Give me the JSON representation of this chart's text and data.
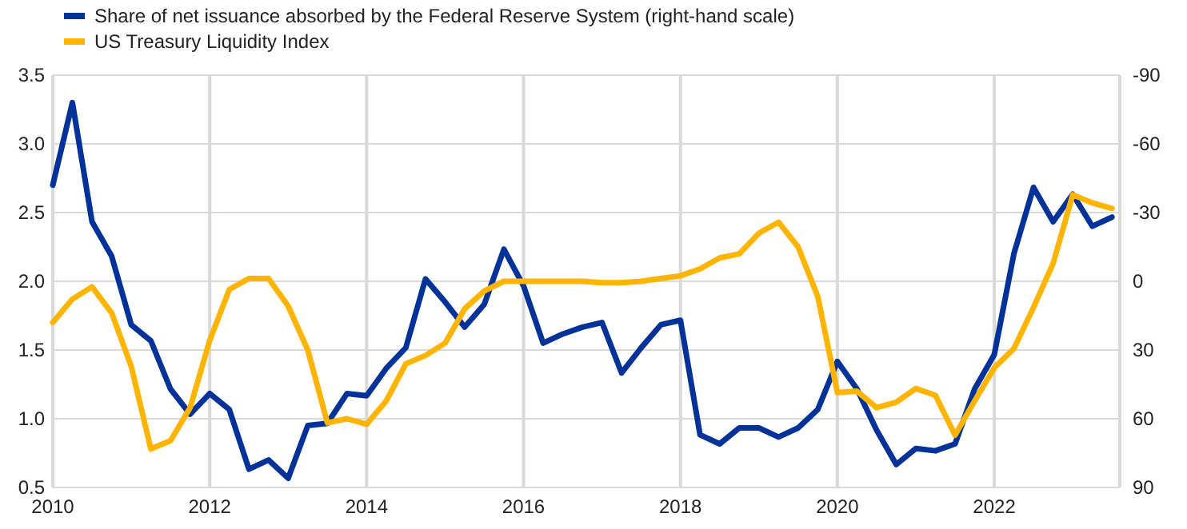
{
  "chart_data": {
    "type": "line",
    "xlim": [
      2010,
      2023.6
    ],
    "xticks": [
      2010,
      2012,
      2014,
      2016,
      2018,
      2020,
      2022
    ],
    "ylim": [
      0.5,
      3.5
    ],
    "yticks": [
      {
        "value": 0.5,
        "label": "0.5"
      },
      {
        "value": 1,
        "label": "1.0"
      },
      {
        "value": 1.5,
        "label": "1.5"
      },
      {
        "value": 2,
        "label": "2.0"
      },
      {
        "value": 2.5,
        "label": "2.5"
      },
      {
        "value": 3,
        "label": "3.0"
      },
      {
        "value": 3.5,
        "label": "3.5"
      }
    ],
    "y2lim": [
      90,
      -90
    ],
    "y2ticks": [
      90,
      60,
      30,
      0,
      -30,
      -60,
      -90
    ],
    "grid": true,
    "legend": "top left",
    "series": [
      {
        "name": "Share of net issuance absorbed by the Federal Reserve System (right-hand scale)",
        "color": "#003299",
        "axis": "y2",
        "x": [
          2010,
          2010.25,
          2010.5,
          2010.75,
          2011,
          2011.25,
          2011.5,
          2011.75,
          2012,
          2012.25,
          2012.5,
          2012.75,
          2013,
          2013.25,
          2013.5,
          2013.75,
          2014,
          2014.25,
          2014.5,
          2014.75,
          2015,
          2015.25,
          2015.5,
          2015.75,
          2016,
          2016.25,
          2016.5,
          2016.75,
          2017,
          2017.25,
          2017.5,
          2017.75,
          2018,
          2018.25,
          2018.5,
          2018.75,
          2019,
          2019.25,
          2019.5,
          2019.75,
          2020,
          2020.25,
          2020.5,
          2020.75,
          2021,
          2021.25,
          2021.5,
          2021.75,
          2022,
          2022.25,
          2022.5,
          2022.75,
          2023,
          2023.25,
          2023.5
        ],
        "values": [
          -42,
          -78,
          -26,
          -11,
          19,
          26,
          47,
          58,
          49,
          56,
          82,
          78,
          86,
          63,
          62,
          49,
          50,
          38,
          29,
          -1,
          9,
          20,
          10,
          -14,
          2,
          27,
          23,
          20,
          18,
          40,
          29,
          19,
          17,
          67,
          71,
          64,
          64,
          68,
          64,
          56,
          35,
          47,
          65,
          80,
          73,
          74,
          71,
          47,
          32,
          -12,
          -41,
          -26,
          -38,
          -24,
          -28
        ]
      },
      {
        "name": "US Treasury Liquidity Index",
        "color": "#ffb400",
        "x": [
          2010,
          2010.25,
          2010.5,
          2010.75,
          2011,
          2011.25,
          2011.5,
          2011.75,
          2012,
          2012.25,
          2012.5,
          2012.75,
          2013,
          2013.25,
          2013.5,
          2013.75,
          2014,
          2014.25,
          2014.5,
          2014.75,
          2015,
          2015.25,
          2015.5,
          2015.75,
          2016,
          2016.25,
          2016.5,
          2016.75,
          2017,
          2017.25,
          2017.5,
          2017.75,
          2018,
          2018.25,
          2018.5,
          2018.75,
          2019,
          2019.25,
          2019.5,
          2019.75,
          2020,
          2020.25,
          2020.5,
          2020.75,
          2021,
          2021.25,
          2021.5,
          2021.75,
          2022,
          2022.25,
          2022.5,
          2022.75,
          2023,
          2023.25,
          2023.5
        ],
        "values": [
          1.7,
          1.87,
          1.96,
          1.77,
          1.38,
          0.78,
          0.84,
          1.08,
          1.57,
          1.94,
          2.02,
          2.02,
          1.82,
          1.5,
          0.97,
          1.0,
          0.96,
          1.13,
          1.4,
          1.46,
          1.55,
          1.8,
          1.93,
          2.0,
          2.0,
          2.0,
          2.0,
          2.0,
          1.99,
          1.99,
          2.0,
          2.02,
          2.04,
          2.09,
          2.17,
          2.2,
          2.35,
          2.43,
          2.25,
          1.89,
          1.19,
          1.2,
          1.08,
          1.12,
          1.22,
          1.17,
          0.88,
          1.13,
          1.37,
          1.51,
          1.81,
          2.13,
          2.63,
          2.57,
          2.53
        ]
      }
    ]
  }
}
